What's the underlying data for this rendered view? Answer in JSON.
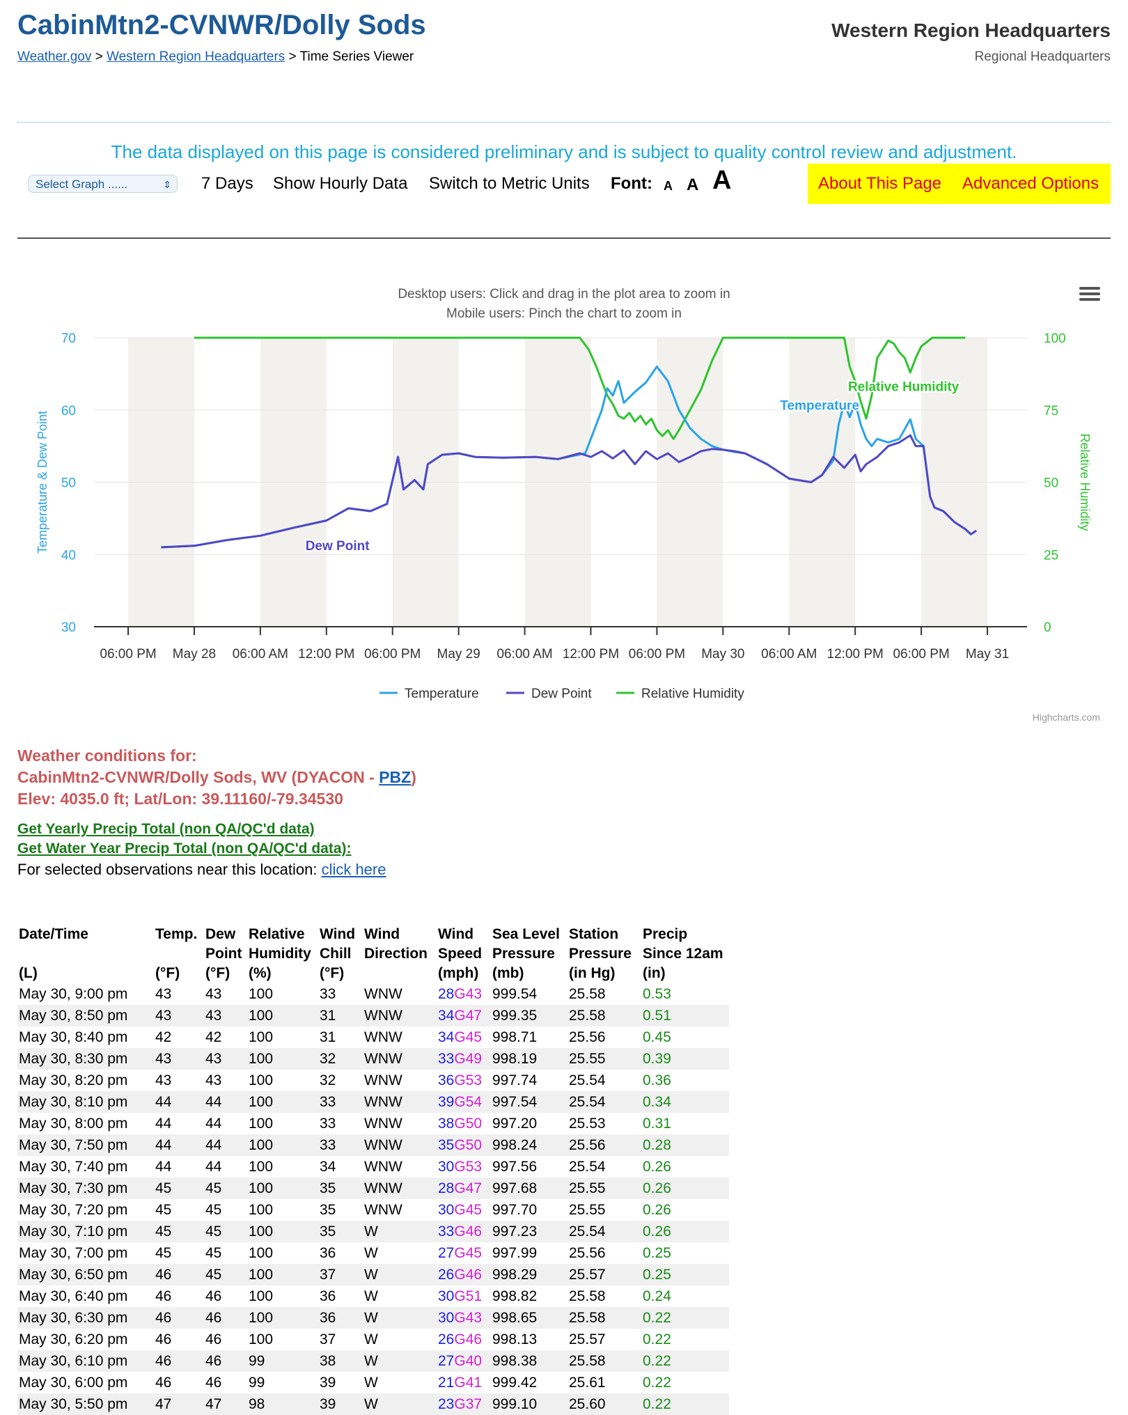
{
  "header": {
    "title": "CabinMtn2-CVNWR/Dolly Sods",
    "breadcrumb": {
      "home": "Weather.gov",
      "sep1": " > ",
      "region": "Western Region Headquarters",
      "sep2": " > ",
      "current": "Time Series Viewer"
    },
    "region_title": "Western Region Headquarters",
    "region_subtitle": "Regional Headquarters"
  },
  "notice": "The data displayed on this page is considered preliminary and is subject to quality control review and adjustment.",
  "toolbar": {
    "select_graph": "Select Graph ......",
    "days": "7 Days",
    "hourly": "Show Hourly Data",
    "metric": "Switch to Metric Units",
    "font_label": "Font:",
    "font_small": "A",
    "font_medium": "A",
    "font_large": "A",
    "about": "About This Page",
    "advanced": "Advanced Options"
  },
  "chart": {
    "subtitle_desktop": "Desktop users: Click and drag in the plot area to zoom in",
    "subtitle_mobile": "Mobile users: Pinch the chart to zoom in",
    "credits": "Highcharts.com"
  },
  "chart_data": {
    "type": "line",
    "ylabel": "Temperature & Dew Point",
    "y2label": "Relative Humidity",
    "ylim": [
      30,
      70
    ],
    "y_ticks": [
      "30",
      "40",
      "50",
      "60",
      "70"
    ],
    "y2lim": [
      0,
      100
    ],
    "y2_ticks": [
      "0",
      "25",
      "50",
      "75",
      "100"
    ],
    "x_ticks": [
      "06:00 PM",
      "May 28",
      "06:00 AM",
      "12:00 PM",
      "06:00 PM",
      "May 29",
      "06:00 AM",
      "12:00 PM",
      "06:00 PM",
      "May 30",
      "06:00 AM",
      "12:00 PM",
      "06:00 PM",
      "May 31"
    ],
    "x_tick_hours": [
      -6,
      0,
      6,
      12,
      18,
      24,
      30,
      36,
      42,
      48,
      54,
      60,
      66,
      72
    ],
    "x_unit_note": "hours relative to May 28 12:00 AM",
    "night_bands": [
      [
        -6,
        0
      ],
      [
        6,
        12
      ],
      [
        18,
        24
      ],
      [
        30,
        36
      ],
      [
        42,
        48
      ],
      [
        54,
        60
      ],
      [
        66,
        72
      ]
    ],
    "series": [
      {
        "name": "Temperature",
        "color": "#2aa4e8",
        "inline_label": "Temperature",
        "points": [
          [
            -3,
            41
          ],
          [
            0,
            41.2
          ],
          [
            3,
            42
          ],
          [
            6,
            42.6
          ],
          [
            9,
            43.7
          ],
          [
            12,
            44.7
          ],
          [
            14,
            46.4
          ],
          [
            16,
            46
          ],
          [
            17.5,
            47
          ],
          [
            18.5,
            53.5
          ],
          [
            19,
            49
          ],
          [
            20,
            50.3
          ],
          [
            20.8,
            49
          ],
          [
            21.2,
            52.5
          ],
          [
            22.5,
            53.8
          ],
          [
            24,
            54
          ],
          [
            25.5,
            53.5
          ],
          [
            28,
            53.4
          ],
          [
            31,
            53.5
          ],
          [
            33,
            53.2
          ],
          [
            35.5,
            54
          ],
          [
            36,
            56
          ],
          [
            37,
            60
          ],
          [
            37.5,
            63
          ],
          [
            38,
            62
          ],
          [
            38.5,
            64
          ],
          [
            39,
            61
          ],
          [
            40,
            62.5
          ],
          [
            41,
            63.8
          ],
          [
            42,
            66
          ],
          [
            43,
            64
          ],
          [
            44,
            60
          ],
          [
            45,
            57.5
          ],
          [
            46,
            56
          ],
          [
            47,
            55
          ],
          [
            48,
            54.5
          ],
          [
            49,
            54.2
          ],
          [
            50,
            54
          ],
          [
            52,
            52.5
          ],
          [
            54,
            50.5
          ],
          [
            56,
            50
          ],
          [
            57,
            51
          ],
          [
            58,
            53
          ],
          [
            58.5,
            58
          ],
          [
            59,
            61
          ],
          [
            59.5,
            59
          ],
          [
            60,
            61
          ],
          [
            60.5,
            58
          ],
          [
            61,
            56
          ],
          [
            61.5,
            55
          ],
          [
            62,
            56
          ],
          [
            63,
            55.5
          ],
          [
            64,
            56
          ],
          [
            65,
            58.7
          ],
          [
            65.5,
            56
          ],
          [
            66.2,
            55
          ],
          [
            66.8,
            48
          ],
          [
            67.2,
            46.5
          ],
          [
            68,
            46
          ],
          [
            69,
            44.5
          ],
          [
            70,
            43.5
          ],
          [
            70.5,
            42.8
          ],
          [
            71,
            43.3
          ]
        ]
      },
      {
        "name": "Dew Point",
        "color": "#5048c4",
        "inline_label": "Dew Point",
        "points": [
          [
            -3,
            41
          ],
          [
            0,
            41.2
          ],
          [
            3,
            42
          ],
          [
            6,
            42.6
          ],
          [
            9,
            43.7
          ],
          [
            12,
            44.7
          ],
          [
            14,
            46.4
          ],
          [
            16,
            46
          ],
          [
            17.5,
            47
          ],
          [
            18.5,
            53.5
          ],
          [
            19,
            49
          ],
          [
            20,
            50.3
          ],
          [
            20.8,
            49
          ],
          [
            21.2,
            52.5
          ],
          [
            22.5,
            53.8
          ],
          [
            24,
            54
          ],
          [
            25.5,
            53.5
          ],
          [
            28,
            53.4
          ],
          [
            31,
            53.5
          ],
          [
            33,
            53.2
          ],
          [
            35,
            54
          ],
          [
            36,
            53.5
          ],
          [
            37,
            54.3
          ],
          [
            38,
            53.3
          ],
          [
            39,
            54.4
          ],
          [
            40,
            52.5
          ],
          [
            41,
            54.3
          ],
          [
            42,
            53.2
          ],
          [
            43,
            54
          ],
          [
            44,
            52.8
          ],
          [
            45,
            53.5
          ],
          [
            46,
            54.3
          ],
          [
            47,
            54.6
          ],
          [
            48,
            54.5
          ],
          [
            49,
            54.3
          ],
          [
            50,
            54
          ],
          [
            52,
            52.5
          ],
          [
            54,
            50.5
          ],
          [
            56,
            50
          ],
          [
            57,
            51
          ],
          [
            58,
            53.5
          ],
          [
            59,
            52
          ],
          [
            60,
            53.8
          ],
          [
            60.5,
            51.5
          ],
          [
            61,
            52.5
          ],
          [
            62,
            53.5
          ],
          [
            63,
            55
          ],
          [
            64,
            55.5
          ],
          [
            65,
            56.5
          ],
          [
            65.5,
            55
          ],
          [
            66.2,
            55
          ],
          [
            66.8,
            48
          ],
          [
            67.2,
            46.5
          ],
          [
            68,
            46
          ],
          [
            69,
            44.5
          ],
          [
            70,
            43.5
          ],
          [
            70.5,
            42.8
          ],
          [
            71,
            43.3
          ]
        ]
      },
      {
        "name": "Relative Humidity",
        "color": "#2ec42e",
        "axis": "right",
        "inline_label": "Relative Humidity",
        "points": [
          [
            0,
            100
          ],
          [
            35,
            100
          ],
          [
            35.8,
            96
          ],
          [
            36.5,
            90
          ],
          [
            37,
            85
          ],
          [
            37.5,
            80
          ],
          [
            38,
            77
          ],
          [
            38.5,
            73
          ],
          [
            39,
            72
          ],
          [
            39.5,
            74
          ],
          [
            40,
            71
          ],
          [
            40.5,
            73
          ],
          [
            41,
            70
          ],
          [
            41.5,
            72
          ],
          [
            42,
            68
          ],
          [
            42.5,
            66
          ],
          [
            43,
            68
          ],
          [
            43.5,
            65
          ],
          [
            44,
            68
          ],
          [
            45,
            75
          ],
          [
            46,
            82
          ],
          [
            47,
            92
          ],
          [
            48,
            100
          ],
          [
            59,
            100
          ],
          [
            59.5,
            90
          ],
          [
            60,
            85
          ],
          [
            60.5,
            78
          ],
          [
            61,
            72
          ],
          [
            61.5,
            80
          ],
          [
            62,
            93
          ],
          [
            62.5,
            96
          ],
          [
            63,
            99
          ],
          [
            63.5,
            98
          ],
          [
            64,
            95
          ],
          [
            64.5,
            93
          ],
          [
            65,
            88
          ],
          [
            65.5,
            93
          ],
          [
            66,
            97
          ],
          [
            67,
            100
          ],
          [
            70,
            100
          ]
        ]
      }
    ],
    "legend": [
      "Temperature",
      "Dew Point",
      "Relative Humidity"
    ],
    "legend_position": "bottom-center"
  },
  "conditions": {
    "line1": "Weather conditions for:",
    "line2_prefix": "CabinMtn2-CVNWR/Dolly Sods, WV (DYACON - ",
    "line2_link": "PBZ",
    "line2_suffix": ")",
    "line3": "Elev: 4035.0 ft; Lat/Lon: 39.11160/-79.34530",
    "yearly_precip": "Get Yearly Precip Total (non QA/QC'd data)",
    "water_year_precip": "Get Water Year Precip Total (non QA/QC'd data):",
    "near_text": "For selected observations near this location: ",
    "near_link": "click here"
  },
  "table": {
    "headers": [
      [
        "Date/Time",
        "",
        "(L)"
      ],
      [
        "Temp.",
        "",
        "(°F)"
      ],
      [
        "Dew",
        "Point",
        "(°F)"
      ],
      [
        "Relative",
        "Humidity",
        "(%)"
      ],
      [
        "Wind",
        "Chill",
        "(°F)"
      ],
      [
        "Wind",
        "Direction",
        ""
      ],
      [
        "Wind",
        "Speed",
        "(mph)"
      ],
      [
        "Sea Level",
        "Pressure",
        "(mb)"
      ],
      [
        "Station",
        "Pressure",
        "(in Hg)"
      ],
      [
        "Precip",
        "Since 12am",
        "(in)"
      ]
    ],
    "rows": [
      [
        "May 30, 9:00 pm",
        "43",
        "43",
        "100",
        "33",
        "WNW",
        "28",
        "G43",
        "999.54",
        "25.58",
        "0.53"
      ],
      [
        "May 30, 8:50 pm",
        "43",
        "43",
        "100",
        "31",
        "WNW",
        "34",
        "G47",
        "999.35",
        "25.58",
        "0.51"
      ],
      [
        "May 30, 8:40 pm",
        "42",
        "42",
        "100",
        "31",
        "WNW",
        "34",
        "G45",
        "998.71",
        "25.56",
        "0.45"
      ],
      [
        "May 30, 8:30 pm",
        "43",
        "43",
        "100",
        "32",
        "WNW",
        "33",
        "G49",
        "998.19",
        "25.55",
        "0.39"
      ],
      [
        "May 30, 8:20 pm",
        "43",
        "43",
        "100",
        "32",
        "WNW",
        "36",
        "G53",
        "997.74",
        "25.54",
        "0.36"
      ],
      [
        "May 30, 8:10 pm",
        "44",
        "44",
        "100",
        "33",
        "WNW",
        "39",
        "G54",
        "997.54",
        "25.54",
        "0.34"
      ],
      [
        "May 30, 8:00 pm",
        "44",
        "44",
        "100",
        "33",
        "WNW",
        "38",
        "G50",
        "997.20",
        "25.53",
        "0.31"
      ],
      [
        "May 30, 7:50 pm",
        "44",
        "44",
        "100",
        "33",
        "WNW",
        "35",
        "G50",
        "998.24",
        "25.56",
        "0.28"
      ],
      [
        "May 30, 7:40 pm",
        "44",
        "44",
        "100",
        "34",
        "WNW",
        "30",
        "G53",
        "997.56",
        "25.54",
        "0.26"
      ],
      [
        "May 30, 7:30 pm",
        "45",
        "45",
        "100",
        "35",
        "WNW",
        "28",
        "G47",
        "997.68",
        "25.55",
        "0.26"
      ],
      [
        "May 30, 7:20 pm",
        "45",
        "45",
        "100",
        "35",
        "WNW",
        "30",
        "G45",
        "997.70",
        "25.55",
        "0.26"
      ],
      [
        "May 30, 7:10 pm",
        "45",
        "45",
        "100",
        "35",
        "W",
        "33",
        "G46",
        "997.23",
        "25.54",
        "0.26"
      ],
      [
        "May 30, 7:00 pm",
        "45",
        "45",
        "100",
        "36",
        "W",
        "27",
        "G45",
        "997.99",
        "25.56",
        "0.25"
      ],
      [
        "May 30, 6:50 pm",
        "46",
        "45",
        "100",
        "37",
        "W",
        "26",
        "G46",
        "998.29",
        "25.57",
        "0.25"
      ],
      [
        "May 30, 6:40 pm",
        "46",
        "46",
        "100",
        "36",
        "W",
        "30",
        "G51",
        "998.82",
        "25.58",
        "0.24"
      ],
      [
        "May 30, 6:30 pm",
        "46",
        "46",
        "100",
        "36",
        "W",
        "30",
        "G43",
        "998.65",
        "25.58",
        "0.22"
      ],
      [
        "May 30, 6:20 pm",
        "46",
        "46",
        "100",
        "37",
        "W",
        "26",
        "G46",
        "998.13",
        "25.57",
        "0.22"
      ],
      [
        "May 30, 6:10 pm",
        "46",
        "46",
        "99",
        "38",
        "W",
        "27",
        "G40",
        "998.38",
        "25.58",
        "0.22"
      ],
      [
        "May 30, 6:00 pm",
        "46",
        "46",
        "99",
        "39",
        "W",
        "21",
        "G41",
        "999.42",
        "25.61",
        "0.22"
      ],
      [
        "May 30, 5:50 pm",
        "47",
        "47",
        "98",
        "39",
        "W",
        "23",
        "G37",
        "999.10",
        "25.60",
        "0.22"
      ]
    ]
  }
}
